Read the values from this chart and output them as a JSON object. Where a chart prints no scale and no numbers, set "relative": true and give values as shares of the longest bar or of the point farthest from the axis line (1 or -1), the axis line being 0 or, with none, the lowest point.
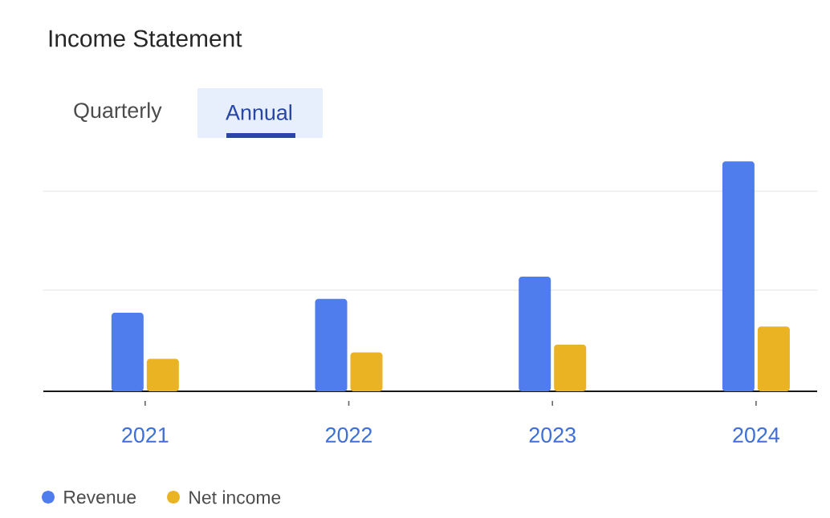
{
  "chart_data": {
    "type": "bar",
    "title": "Income Statement",
    "annotations": [
      "Quarterly",
      "Annual"
    ],
    "categories": [
      "2021",
      "2022",
      "2023",
      "2024"
    ],
    "relative": true,
    "ref_lines": [
      {
        "axis": "y",
        "value": 0.44,
        "color": "#ebebeb"
      },
      {
        "axis": "y",
        "value": 0.87,
        "color": "#ebebeb"
      }
    ],
    "legend": "bottom left",
    "series": [
      {
        "name": "Revenue",
        "color": "#507ded",
        "values": [
          0.342,
          0.402,
          0.499,
          1
        ]
      },
      {
        "name": "Net income",
        "color": "#e9b324",
        "values": [
          0.141,
          0.169,
          0.203,
          0.282
        ]
      }
    ]
  }
}
